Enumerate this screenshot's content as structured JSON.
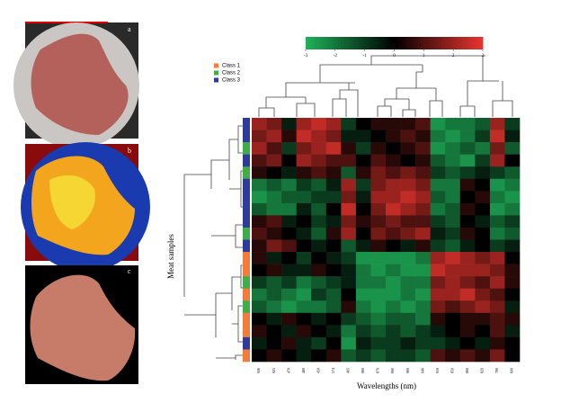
{
  "panels": {
    "labels": [
      "a",
      "b",
      "c"
    ]
  },
  "chart_data": {
    "type": "heatmap",
    "xlabel": "Wavelengths (nm)",
    "ylabel": "Meat samples",
    "categories": [
      "936",
      "925",
      "470",
      "480",
      "450",
      "574",
      "405",
      "960",
      "870",
      "890",
      "960",
      "940",
      "910",
      "850",
      "860",
      "820",
      "780",
      "600"
    ],
    "legend": [
      {
        "name": "Class 1",
        "color": "#f47b3b"
      },
      {
        "name": "Class 2",
        "color": "#3fae49"
      },
      {
        "name": "Class 3",
        "color": "#2e3a9c"
      }
    ],
    "row_classes": [
      2,
      2,
      1,
      2,
      1,
      2,
      2,
      2,
      2,
      1,
      2,
      0,
      0,
      1,
      0,
      1,
      0,
      0,
      2,
      0
    ],
    "colorscale": {
      "low": "#1fb25a",
      "mid": "#000000",
      "high": "#e8352f"
    },
    "clim": [
      -3,
      3
    ],
    "cticks": [
      -3,
      -2,
      -1,
      0,
      1,
      2,
      3
    ],
    "values": [
      [
        2,
        1.5,
        -0.5,
        2,
        2.5,
        2,
        -1,
        0,
        0.5,
        0.5,
        0.5,
        1,
        -2.5,
        -2,
        -2,
        -1.5,
        2,
        -1
      ],
      [
        1.5,
        2,
        0.5,
        2.5,
        2,
        1.5,
        -0.5,
        -0.5,
        0,
        0.5,
        1,
        0.5,
        -2,
        -2.5,
        -2,
        -1,
        2.5,
        -0.5
      ],
      [
        2,
        1,
        -1,
        1.5,
        2,
        2.5,
        0.5,
        -1,
        0.5,
        0,
        0.5,
        1,
        -2.5,
        -2,
        -1.5,
        -2,
        1.5,
        -1.5
      ],
      [
        1,
        1.5,
        0,
        2,
        1.5,
        1,
        1,
        0,
        1,
        0.5,
        0,
        0.5,
        -1.5,
        -2,
        -2.5,
        -1,
        2,
        0
      ],
      [
        0.5,
        0,
        -0.5,
        0.5,
        1,
        0.5,
        -1.5,
        0.5,
        1.5,
        1,
        1.5,
        1,
        -1,
        -1.5,
        -1,
        -0.5,
        -1,
        -1.5
      ],
      [
        -2,
        -1.5,
        -2,
        -1,
        -1.5,
        -0.5,
        2,
        -1,
        1.5,
        2,
        2,
        1.5,
        -2,
        -2,
        0.5,
        0,
        -2.5,
        -2
      ],
      [
        -2.5,
        -2,
        -1.5,
        -1.5,
        -1,
        -1,
        1.5,
        -0.5,
        2,
        2,
        2.5,
        2,
        -1.5,
        -2,
        0,
        0.5,
        -2,
        -2.5
      ],
      [
        -1.5,
        -2,
        -2,
        -0.5,
        -1.5,
        0,
        2.5,
        0,
        1.5,
        2.5,
        2,
        1.5,
        -2,
        -1.5,
        0.5,
        0,
        -2.5,
        -2
      ],
      [
        0.5,
        1,
        -0.5,
        0,
        -1,
        -0.5,
        1.5,
        0.5,
        1,
        1.5,
        1,
        1,
        -1,
        -1.5,
        0,
        -0.5,
        -1.5,
        -1
      ],
      [
        1,
        0.5,
        0,
        -0.5,
        -1.5,
        0.5,
        2,
        0,
        1.5,
        1,
        1.5,
        2,
        -0.5,
        -1,
        0.5,
        0,
        -2,
        -1.5
      ],
      [
        0.5,
        1.5,
        1,
        0,
        -0.5,
        0,
        -1.5,
        -0.5,
        0.5,
        0,
        -0.5,
        0.5,
        -1,
        -1.5,
        -0.5,
        0,
        -1,
        -0.5
      ],
      [
        0.5,
        -0.5,
        0,
        -1,
        0,
        -0.5,
        -1,
        -2.5,
        -2.5,
        -2.5,
        -2.5,
        -2,
        2,
        2.5,
        2,
        1.5,
        2,
        0
      ],
      [
        0,
        0.5,
        -0.5,
        -0.5,
        0.5,
        0,
        -0.5,
        -2,
        -2.5,
        -2,
        -2.5,
        -2.5,
        2.5,
        2,
        2,
        2,
        1.5,
        0.5
      ],
      [
        -1,
        -1.5,
        -1,
        -2,
        -1.5,
        -1,
        -0.5,
        -2,
        -2,
        -2.5,
        -2,
        -2,
        1.5,
        2,
        1.5,
        1,
        2,
        0.5
      ],
      [
        -2,
        -1.5,
        -2,
        -2.5,
        -1,
        -1.5,
        0,
        -2.5,
        -2.5,
        -2.5,
        -2,
        -2.5,
        2,
        2,
        2.5,
        1.5,
        1,
        0
      ],
      [
        -1.5,
        -2,
        -2.5,
        -2,
        -2,
        -1.5,
        0.5,
        -2,
        -2.5,
        -2,
        -2.5,
        -2,
        1.5,
        1,
        1.5,
        2,
        1.5,
        -0.5
      ],
      [
        0,
        -0.5,
        0.5,
        0,
        -0.5,
        0,
        -1,
        -1.5,
        -2,
        -1.5,
        -1.5,
        -2,
        0.5,
        0,
        0.5,
        0.5,
        1,
        0.5
      ],
      [
        0.5,
        0,
        -0.5,
        0.5,
        0,
        -0.5,
        -2,
        -1,
        -1.5,
        -1,
        -1.5,
        -1,
        -0.5,
        0,
        0.5,
        0,
        1,
        -0.5
      ],
      [
        -0.5,
        0,
        0.5,
        -0.5,
        -1,
        0,
        -2.5,
        -0.5,
        -1,
        -1,
        -0.5,
        -1,
        -1,
        -0.5,
        0,
        -0.5,
        0.5,
        0
      ],
      [
        0,
        0.5,
        0,
        -0.5,
        0,
        0.5,
        -1.5,
        -1,
        -1.5,
        -1,
        -1,
        -1.5,
        1,
        0.5,
        1,
        0.5,
        1.5,
        0
      ]
    ]
  }
}
